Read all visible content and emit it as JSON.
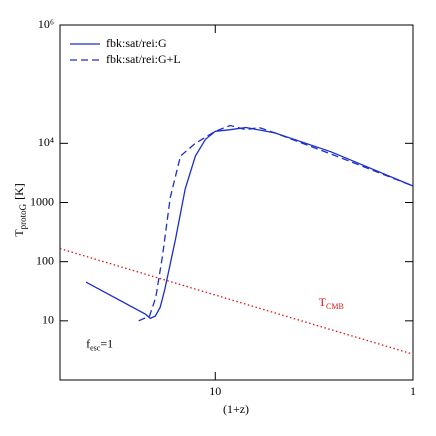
{
  "chart_data": {
    "type": "line",
    "xlabel": "(1+z)",
    "ylabel": "T",
    "ylabel_sub": "protoG",
    "ylabel_unit": "[K]",
    "xlog": true,
    "ylog": true,
    "xlim": [
      61,
      1
    ],
    "ylim": [
      1,
      1000000
    ],
    "xticks": [
      10,
      1
    ],
    "yticks": [
      {
        "value": 1000000,
        "label": "10⁶"
      },
      {
        "value": 10000,
        "label": "10⁴"
      },
      1000,
      100,
      10
    ],
    "legend": "upper left",
    "series": [
      {
        "name": "fbk:sat/rei:G",
        "color": "#1a2ecc",
        "dash": "solid",
        "x": [
          45,
          22.6,
          21.3,
          20.1,
          19.0,
          18.0,
          15.9,
          14.2,
          12.6,
          11.2,
          10,
          8.4,
          7.0,
          5.0,
          2.6,
          1
        ],
        "values": [
          45,
          13,
          11,
          12,
          17,
          34,
          240,
          1700,
          6100,
          11700,
          16000,
          17000,
          18500,
          15000,
          7200,
          1900
        ]
      },
      {
        "name": "fbk:sat/rei:G+L",
        "color": "#1a2ecc",
        "dash": "dashed",
        "x": [
          24.4,
          21.5,
          20,
          18.5,
          16.9,
          15,
          12.6,
          10,
          8.4,
          7.0,
          6.0,
          5.0,
          2.6,
          1
        ],
        "values": [
          10,
          12,
          25,
          125,
          1200,
          6100,
          10000,
          16000,
          20000,
          17000,
          18500,
          15000,
          6600,
          1900
        ]
      },
      {
        "color": "#e01010",
        "dash": "dotted",
        "x": [
          61,
          1
        ],
        "values": [
          166,
          2.725
        ]
      }
    ],
    "annotations": [
      {
        "text": "T",
        "sub": "CMB",
        "color": "#e01010",
        "x": 3.0,
        "y": 20
      },
      {
        "text": "f",
        "sub": "esc",
        "tail": "=1",
        "color": "#000000",
        "x": 45,
        "y": 4
      }
    ]
  }
}
